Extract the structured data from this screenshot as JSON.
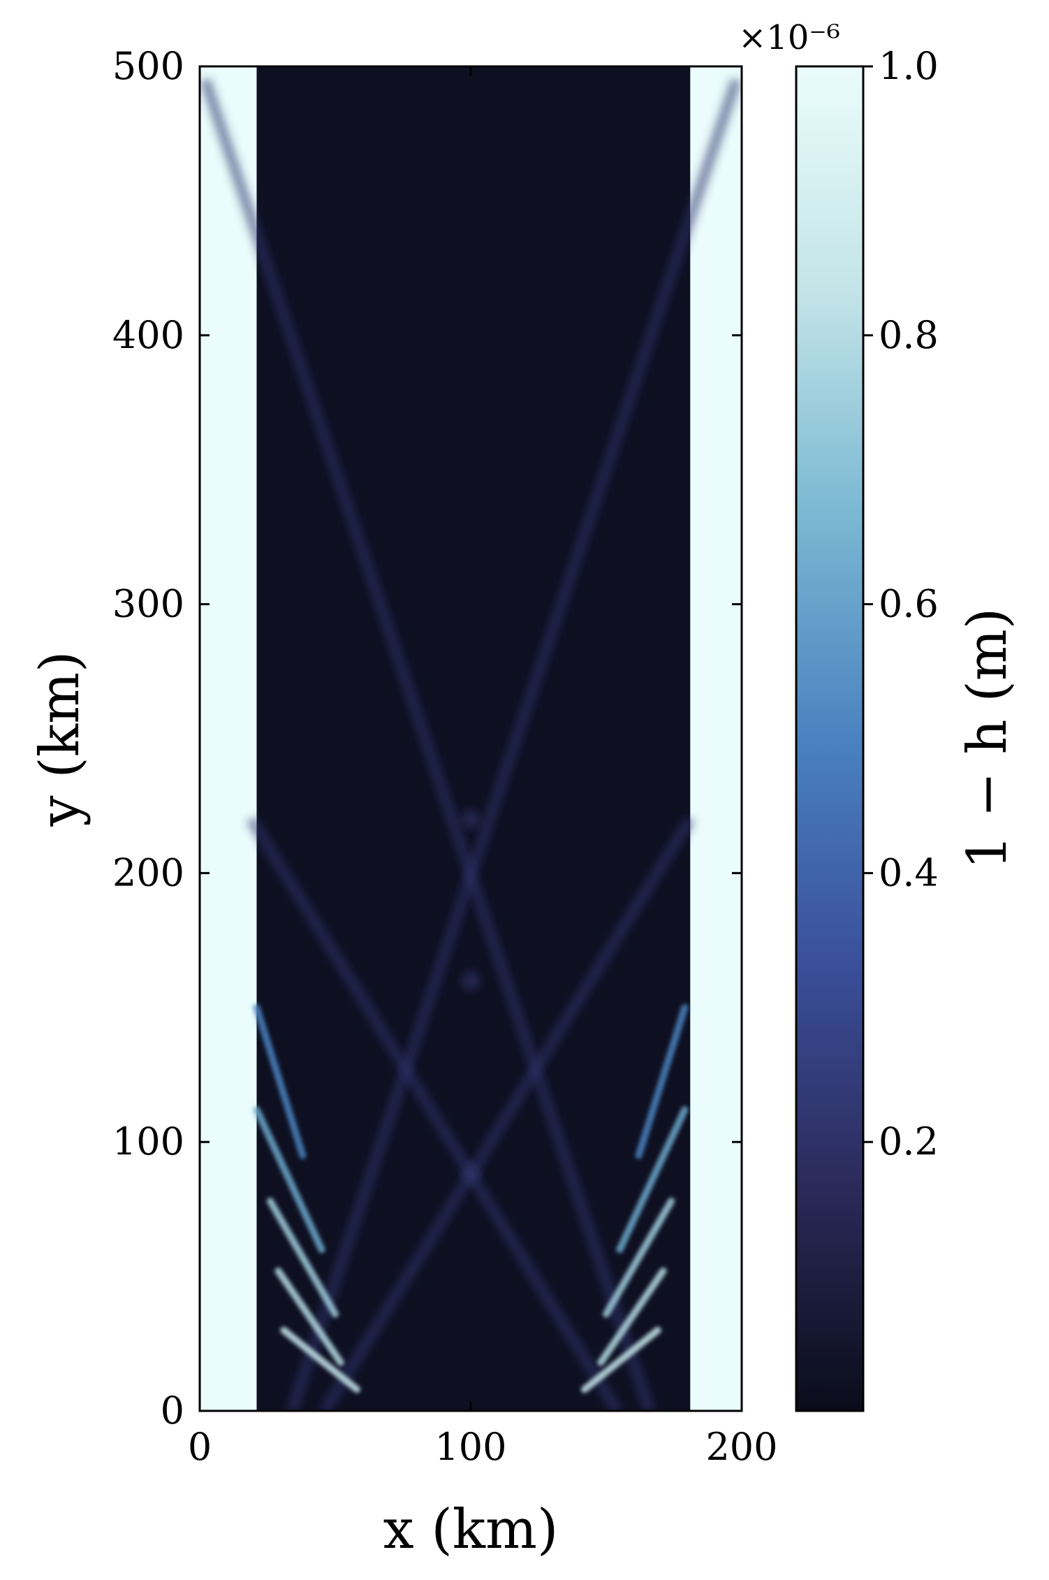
{
  "chart_data": {
    "type": "heatmap",
    "title": "",
    "xlabel": "x (km)",
    "ylabel": "y (km)",
    "xlim": [
      0,
      200
    ],
    "ylim": [
      0,
      500
    ],
    "xticks": [
      "0",
      "100",
      "200"
    ],
    "yticks": [
      "0",
      "100",
      "200",
      "300",
      "400",
      "500"
    ],
    "colorbar": {
      "label": "1 − h (m)",
      "multiplier": "×10⁻⁶",
      "range": [
        0.0,
        1.0
      ],
      "ticks": [
        "0.2",
        "0.4",
        "0.6",
        "0.8",
        "1.0"
      ],
      "tick_values": [
        0.2,
        0.4,
        0.6,
        0.8,
        1.0
      ],
      "colormap": "ice",
      "colors": [
        "#0a0c1a",
        "#2b2a5a",
        "#3a4f9a",
        "#4a82c0",
        "#7ab8d2",
        "#c3e4e8",
        "#eafcfb"
      ]
    },
    "regions": {
      "walls_x": [
        [
          0,
          21
        ],
        [
          181,
          200
        ]
      ],
      "wall_value": 1.0,
      "interior_value": 0.02,
      "active_front_y_top": 150
    },
    "wave_rays": [
      {
        "x": [
          34,
          198
        ],
        "y": [
          0,
          495
        ]
      },
      {
        "x": [
          166,
          2
        ],
        "y": [
          0,
          495
        ]
      },
      {
        "x": [
          46,
          181
        ],
        "y": [
          0,
          220
        ]
      },
      {
        "x": [
          154,
          19
        ],
        "y": [
          0,
          220
        ]
      }
    ],
    "crossing_points": [
      {
        "x": 100,
        "y": 88
      },
      {
        "x": 100,
        "y": 160
      },
      {
        "x": 100,
        "y": 220
      }
    ]
  }
}
